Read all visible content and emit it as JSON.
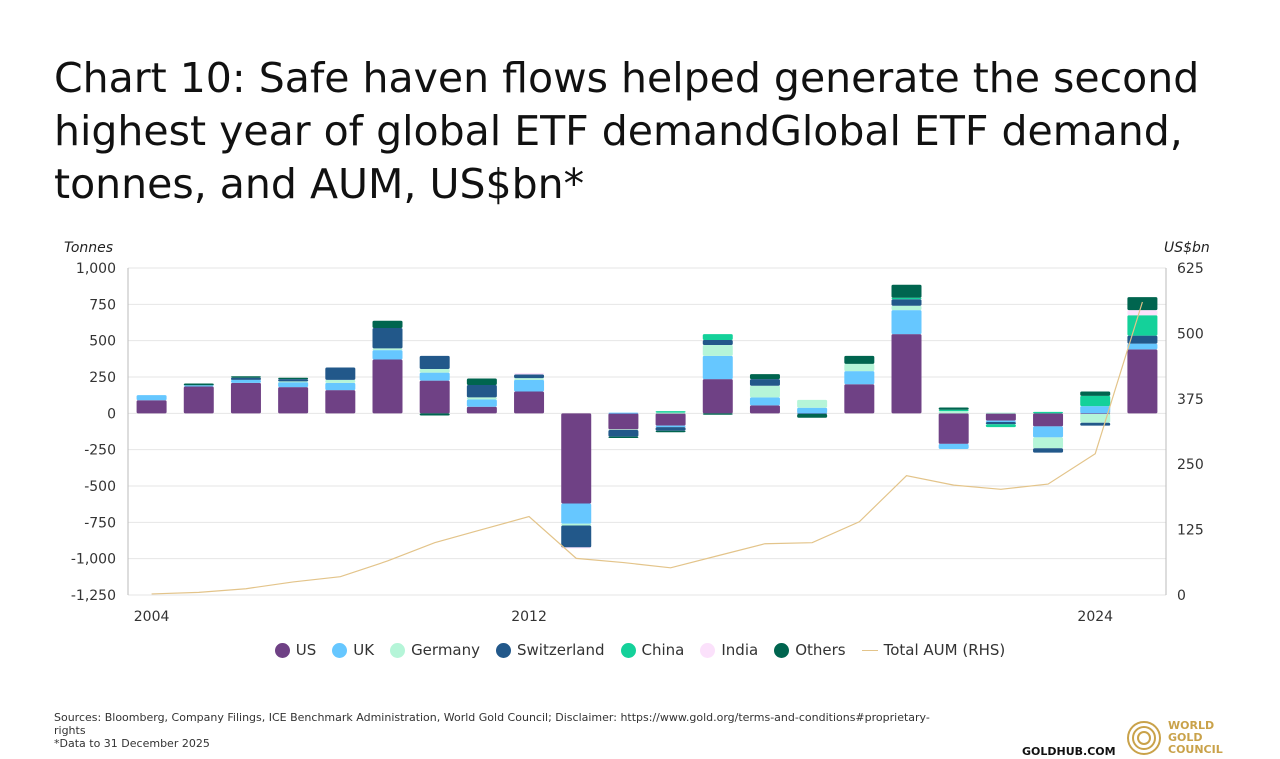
{
  "title": "Chart 10: Safe haven flows helped generate the second highest year of global ETF demandGlobal ETF demand, tonnes, and AUM, US$bn*",
  "footer": {
    "sources": "Sources: Bloomberg, Company Filings, ICE Benchmark Administration, World Gold Council; Disclaimer: https://www.gold.org/terms-and-conditions#proprietary-rights",
    "note": "*Data to 31 December 2025",
    "site": "GOLDHUB.COM",
    "logo_text": [
      "WORLD",
      "GOLD",
      "COUNCIL"
    ]
  },
  "chart_data": {
    "type": "bar",
    "stacked": true,
    "ylabel": "Tonnes",
    "y2label": "US$bn",
    "ylim": [
      -1250,
      1000
    ],
    "y2lim": [
      0,
      625
    ],
    "yticks": [
      "1,000",
      "750",
      "500",
      "250",
      "0",
      "-250",
      "-500",
      "-750",
      "-1,000",
      "-1,250"
    ],
    "ytick_values": [
      1000,
      750,
      500,
      250,
      0,
      -250,
      -500,
      -750,
      -1000,
      -1250
    ],
    "y2ticks": [
      "625",
      "500",
      "375",
      "250",
      "125",
      "0"
    ],
    "y2tick_values": [
      625,
      500,
      375,
      250,
      125,
      0
    ],
    "xticks": [
      "2004",
      "2012",
      "2024"
    ],
    "grid": true,
    "legend_position": "bottom",
    "categories": [
      "2004",
      "2005",
      "2006",
      "2007",
      "2008",
      "2009",
      "2010",
      "2011",
      "2012",
      "2013",
      "2014",
      "2015",
      "2016",
      "2017",
      "2018",
      "2019",
      "2020",
      "2021",
      "2022",
      "2023",
      "2024",
      "2025"
    ],
    "series": [
      {
        "name": "US",
        "color": "#6f4185",
        "values": [
          90,
          185,
          210,
          180,
          160,
          370,
          225,
          45,
          150,
          -620,
          -110,
          -85,
          235,
          55,
          0,
          200,
          545,
          -210,
          -50,
          -90,
          -5,
          440
        ]
      },
      {
        "name": "UK",
        "color": "#66c7ff",
        "values": [
          35,
          8,
          20,
          35,
          50,
          65,
          55,
          50,
          80,
          -140,
          5,
          -10,
          160,
          55,
          38,
          90,
          165,
          -35,
          -10,
          -75,
          50,
          40
        ]
      },
      {
        "name": "Germany",
        "color": "#b5f5d8",
        "values": [
          0,
          0,
          0,
          5,
          20,
          12,
          25,
          15,
          12,
          -12,
          -5,
          5,
          75,
          80,
          55,
          50,
          30,
          15,
          5,
          -75,
          -60,
          0
        ]
      },
      {
        "name": "Switzerland",
        "color": "#22588a",
        "values": [
          0,
          0,
          15,
          15,
          85,
          140,
          90,
          85,
          25,
          -150,
          -45,
          -25,
          35,
          45,
          -5,
          0,
          45,
          0,
          -15,
          -30,
          -20,
          55
        ]
      },
      {
        "name": "China",
        "color": "#14d19a",
        "values": [
          0,
          0,
          0,
          0,
          0,
          0,
          0,
          0,
          0,
          0,
          0,
          10,
          40,
          0,
          0,
          0,
          10,
          10,
          -20,
          10,
          70,
          140
        ]
      },
      {
        "name": "India",
        "color": "#fbe1fb",
        "values": [
          0,
          0,
          0,
          0,
          0,
          0,
          0,
          0,
          10,
          -5,
          0,
          0,
          0,
          0,
          0,
          0,
          0,
          0,
          0,
          0,
          0,
          35
        ]
      },
      {
        "name": "Others",
        "color": "#00654f",
        "values": [
          0,
          12,
          10,
          10,
          0,
          50,
          -15,
          45,
          0,
          0,
          -10,
          -10,
          -10,
          35,
          -25,
          55,
          90,
          15,
          0,
          0,
          30,
          90
        ]
      }
    ],
    "line_series": {
      "name": "Total AUM (RHS)",
      "color": "#e3c48a",
      "axis": "right",
      "values": [
        2,
        5,
        12,
        25,
        35,
        65,
        100,
        125,
        150,
        70,
        62,
        52,
        75,
        98,
        100,
        140,
        228,
        210,
        202,
        212,
        270,
        560
      ]
    }
  }
}
